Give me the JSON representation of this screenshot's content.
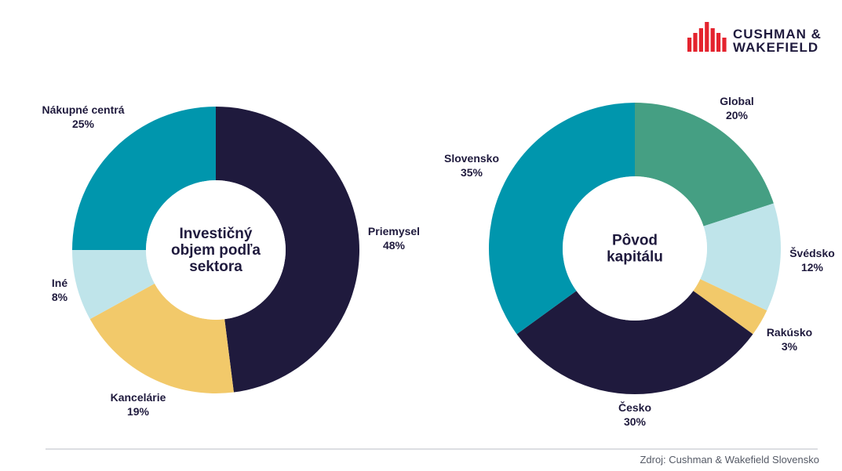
{
  "brand": {
    "line1": "CUSHMAN &",
    "line2": "WAKEFIELD",
    "color": "#e4232e"
  },
  "source": "Zdroj: Cushman & Wakefield Slovensko",
  "chart_data": [
    {
      "type": "pie",
      "variant": "donut",
      "center_title": [
        "Investičný",
        "objem podľa",
        "sektora"
      ],
      "categories": [
        "Priemysel",
        "Kancelárie",
        "Iné",
        "Nákupné centrá"
      ],
      "values": [
        48,
        19,
        8,
        25
      ],
      "value_labels": [
        "48%",
        "19%",
        "8%",
        "25%"
      ],
      "colors": [
        "#1f1a3d",
        "#f2c96a",
        "#bfe4ea",
        "#0096ad"
      ]
    },
    {
      "type": "pie",
      "variant": "donut",
      "center_title": [
        "Pôvod",
        "kapitálu"
      ],
      "categories": [
        "Global",
        "Švédsko",
        "Rakúsko",
        "Česko",
        "Slovensko"
      ],
      "values": [
        20,
        12,
        3,
        30,
        35
      ],
      "value_labels": [
        "20%",
        "12%",
        "3%",
        "30%",
        "35%"
      ],
      "colors": [
        "#459f83",
        "#bfe4ea",
        "#f2c96a",
        "#1f1a3d",
        "#0096ad"
      ]
    }
  ]
}
